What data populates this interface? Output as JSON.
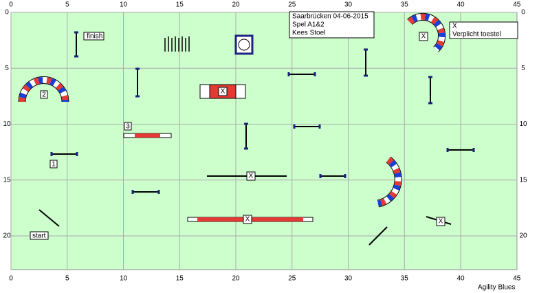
{
  "x_ticks": [
    0,
    5,
    10,
    15,
    20,
    25,
    30,
    35,
    40,
    45
  ],
  "y_ticks": [
    0,
    5,
    10,
    15,
    20
  ],
  "info": {
    "location_date": "Saarbrücken 04-06-2015",
    "game": "Spel A1&2",
    "judge": "Kees Stoel"
  },
  "legend": {
    "symbol": "X",
    "text": "Verplicht toestel"
  },
  "labels": {
    "finish": "finish",
    "start": "start",
    "numbers": [
      "1",
      "2",
      "3"
    ],
    "mandatory": [
      "X",
      "X",
      "X",
      "X",
      "X"
    ]
  },
  "footer": "Agility Blues"
}
